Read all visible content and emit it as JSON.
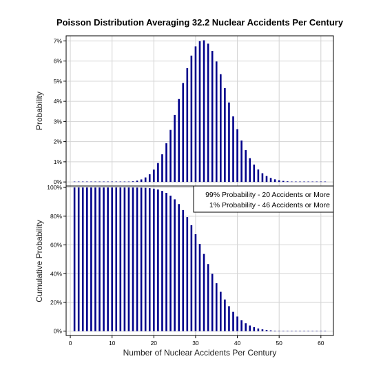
{
  "chart_data": [
    {
      "type": "bar",
      "title": "Poisson Distribution Averaging 32.2 Nuclear Accidents Per Century",
      "ylabel": "Probability",
      "mean": 32.2,
      "x": [
        1,
        61
      ],
      "xlim": [
        -1,
        63
      ],
      "ylim": [
        -0.002,
        0.0725
      ],
      "yticks": [
        "0%",
        "1%",
        "2%",
        "3%",
        "4%",
        "5%",
        "6%",
        "7%"
      ],
      "ytick_values": [
        0,
        0.01,
        0.02,
        0.03,
        0.04,
        0.05,
        0.06,
        0.07
      ],
      "grid": true,
      "bar_color": "#00008b"
    },
    {
      "type": "bar",
      "ylabel": "Cumulative Probability",
      "xlabel": "Number of Nuclear Accidents Per Century",
      "mean": 32.2,
      "x": [
        1,
        61
      ],
      "xlim": [
        -1,
        63
      ],
      "ylim": [
        -0.03,
        1.01
      ],
      "xticks": [
        "0",
        "10",
        "20",
        "30",
        "40",
        "50",
        "60"
      ],
      "xtick_values": [
        0,
        10,
        20,
        30,
        40,
        50,
        60
      ],
      "yticks": [
        "0%",
        "20%",
        "40%",
        "60%",
        "80%",
        "100%"
      ],
      "ytick_values": [
        0,
        0.2,
        0.4,
        0.6,
        0.8,
        1.0
      ],
      "grid": true,
      "bar_color": "#00008b",
      "annotations": [
        "99% Probability - 20 Accidents or More",
        "1% Probability - 46 Accidents or More"
      ]
    }
  ]
}
